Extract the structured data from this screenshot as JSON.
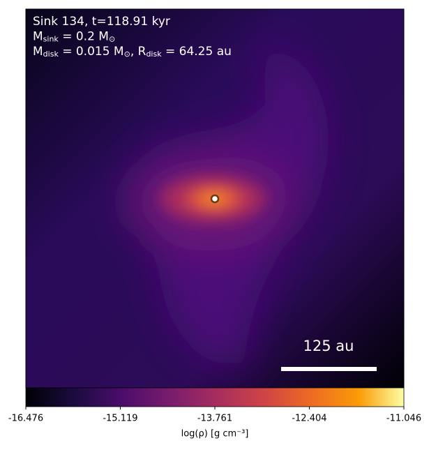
{
  "chart_data": {
    "type": "density_map",
    "annotations": [
      [
        "Sink 134, t=118.91 kyr"
      ],
      [
        "M",
        "sink",
        " = 0.2 M",
        "⊙"
      ],
      [
        "M",
        "disk",
        " = 0.015 M",
        "⊙",
        ", R",
        "disk",
        " = 64.25 au"
      ]
    ],
    "scale_bar": "125 au",
    "colorbar": {
      "label": "log(ρ) [g cm⁻³]",
      "colormap": "inferno",
      "xlim": [
        -16.476,
        -11.046
      ],
      "xticks": [
        -16.476,
        -15.119,
        -13.761,
        -12.404,
        -11.046
      ]
    }
  }
}
